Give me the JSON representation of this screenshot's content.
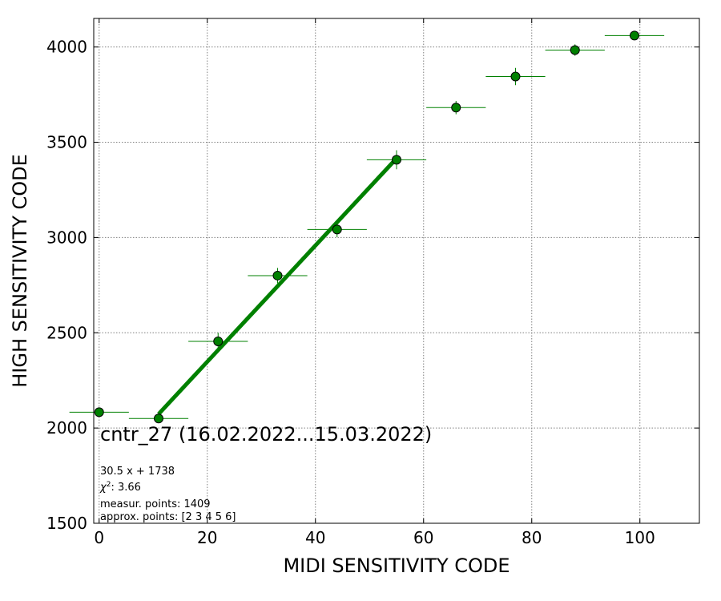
{
  "chart_data": {
    "type": "scatter",
    "title": "cntr_27 (16.02.2022...15.03.2022)",
    "xlabel": "MIDI SENSITIVITY CODE",
    "ylabel": "HIGH SENSITIVITY CODE",
    "xlim": [
      -1,
      111
    ],
    "ylim": [
      1500,
      4150
    ],
    "xticks": [
      0,
      20,
      40,
      60,
      80,
      100
    ],
    "yticks": [
      1500,
      2000,
      2500,
      3000,
      3500,
      4000
    ],
    "grid": true,
    "colors": {
      "points": "#008000",
      "fit": "#008000",
      "marker_edge": "#000000"
    },
    "series": [
      {
        "x": [
          0,
          11,
          22,
          33,
          44,
          55,
          66,
          77,
          88,
          99
        ],
        "y": [
          2083,
          2050,
          2455,
          2800,
          3042,
          3408,
          3682,
          3845,
          3984,
          4060
        ],
        "xerr": [
          5.5,
          5.5,
          5.5,
          5.5,
          5.5,
          5.5,
          5.5,
          5.5,
          5.5,
          5.5
        ],
        "yerr": [
          10,
          15,
          45,
          40,
          40,
          50,
          35,
          45,
          30,
          10
        ]
      }
    ],
    "fit_line": {
      "x_start": 11,
      "x_end": 55,
      "slope": 30.5,
      "intercept": 1738
    },
    "annotations": {
      "equation": "30.5 x + 1738",
      "chi2_label": "χ",
      "chi2_sup": "2",
      "chi2_value": ": 3.66",
      "measur_points": "measur. points: 1409",
      "approx_points": "approx. points: [2 3 4 5 6]"
    }
  }
}
